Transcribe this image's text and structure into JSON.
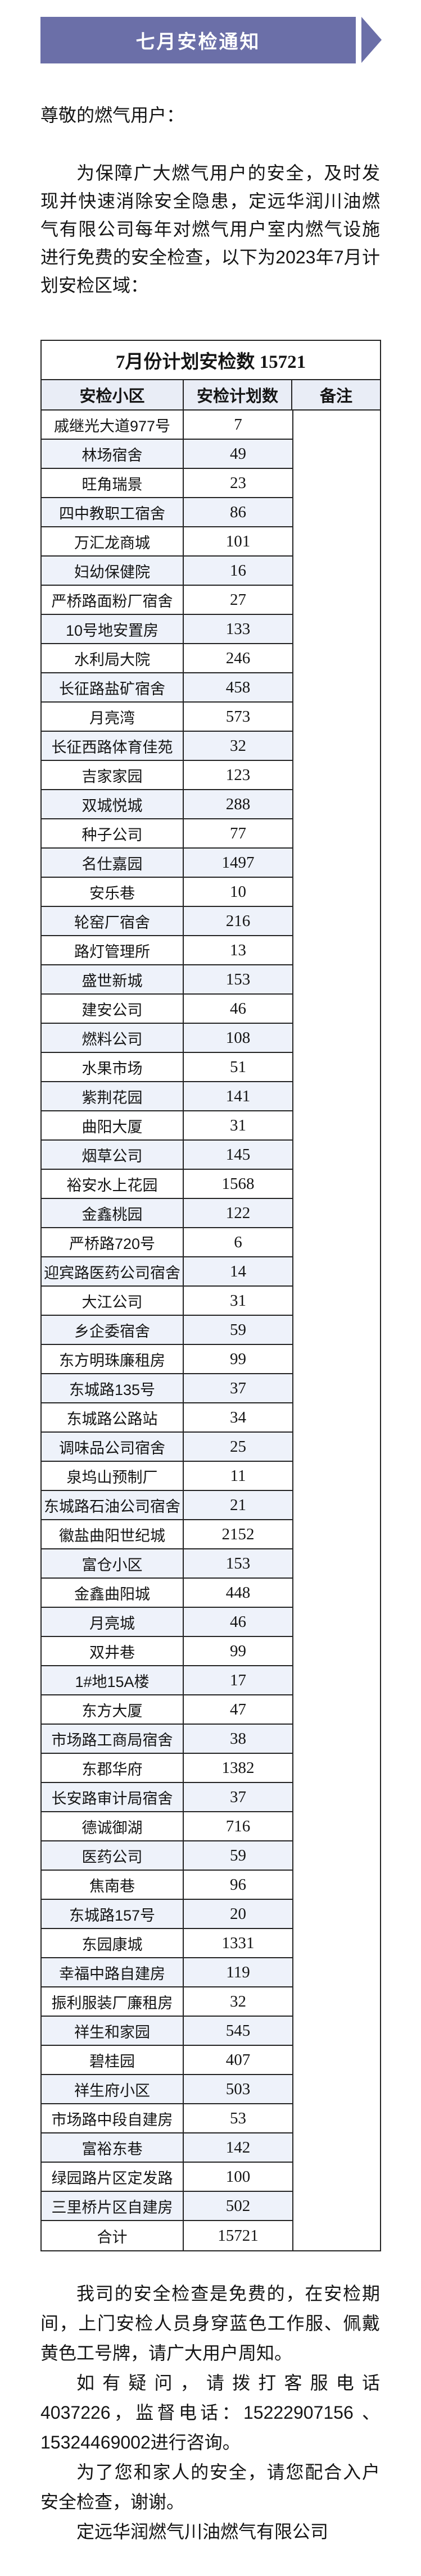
{
  "colors": {
    "banner_purple": "#6b6fa8",
    "header_row_bg": "#e9edf6",
    "alt_row_bg": "#eef2fa",
    "border": "#242424",
    "text": "#151515"
  },
  "banner": {
    "title": "七月安检通知"
  },
  "greeting": "尊敬的燃气用户：",
  "intro": "为保障广大燃气用户的安全，及时发现并快速消除安全隐患，定远华润川油燃气有限公司每年对燃气用户室内燃气设施进行免费的安全检查，以下为2023年7月计划安检区域：",
  "table": {
    "title": "7月份计划安检数 15721",
    "columns": [
      "安检小区",
      "安检计划数",
      "备注"
    ],
    "rows": [
      {
        "name": "戚继光大道977号",
        "count": "7"
      },
      {
        "name": "林场宿舍",
        "count": "49"
      },
      {
        "name": "旺角瑞景",
        "count": "23"
      },
      {
        "name": "四中教职工宿舍",
        "count": "86"
      },
      {
        "name": "万汇龙商城",
        "count": "101"
      },
      {
        "name": "妇幼保健院",
        "count": "16"
      },
      {
        "name": "严桥路面粉厂宿舍",
        "count": "27"
      },
      {
        "name": "10号地安置房",
        "count": "133"
      },
      {
        "name": "水利局大院",
        "count": "246"
      },
      {
        "name": "长征路盐矿宿舍",
        "count": "458"
      },
      {
        "name": "月亮湾",
        "count": "573"
      },
      {
        "name": "长征西路体育佳苑",
        "count": "32"
      },
      {
        "name": "吉家家园",
        "count": "123"
      },
      {
        "name": "双城悦城",
        "count": "288"
      },
      {
        "name": "种子公司",
        "count": "77"
      },
      {
        "name": "名仕嘉园",
        "count": "1497"
      },
      {
        "name": "安乐巷",
        "count": "10"
      },
      {
        "name": "轮窑厂宿舍",
        "count": "216"
      },
      {
        "name": "路灯管理所",
        "count": "13"
      },
      {
        "name": "盛世新城",
        "count": "153"
      },
      {
        "name": "建安公司",
        "count": "46"
      },
      {
        "name": "燃料公司",
        "count": "108"
      },
      {
        "name": "水果市场",
        "count": "51"
      },
      {
        "name": "紫荆花园",
        "count": "141"
      },
      {
        "name": "曲阳大厦",
        "count": "31"
      },
      {
        "name": "烟草公司",
        "count": "145"
      },
      {
        "name": "裕安水上花园",
        "count": "1568"
      },
      {
        "name": "金鑫桃园",
        "count": "122"
      },
      {
        "name": "严桥路720号",
        "count": "6"
      },
      {
        "name": "迎宾路医药公司宿舍",
        "count": "14"
      },
      {
        "name": "大江公司",
        "count": "31"
      },
      {
        "name": "乡企委宿舍",
        "count": "59"
      },
      {
        "name": "东方明珠廉租房",
        "count": "99"
      },
      {
        "name": "东城路135号",
        "count": "37"
      },
      {
        "name": "东城路公路站",
        "count": "34"
      },
      {
        "name": "调味品公司宿舍",
        "count": "25"
      },
      {
        "name": "泉坞山预制厂",
        "count": "11"
      },
      {
        "name": "东城路石油公司宿舍",
        "count": "21"
      },
      {
        "name": "徽盐曲阳世纪城",
        "count": "2152"
      },
      {
        "name": "富仓小区",
        "count": "153"
      },
      {
        "name": "金鑫曲阳城",
        "count": "448"
      },
      {
        "name": "月亮城",
        "count": "46"
      },
      {
        "name": "双井巷",
        "count": "99"
      },
      {
        "name": "1#地15A楼",
        "count": "17"
      },
      {
        "name": "东方大厦",
        "count": "47"
      },
      {
        "name": "市场路工商局宿舍",
        "count": "38"
      },
      {
        "name": "东郡华府",
        "count": "1382"
      },
      {
        "name": "长安路审计局宿舍",
        "count": "37"
      },
      {
        "name": "德诚御湖",
        "count": "716"
      },
      {
        "name": "医药公司",
        "count": "59"
      },
      {
        "name": "焦南巷",
        "count": "96"
      },
      {
        "name": "东城路157号",
        "count": "20"
      },
      {
        "name": "东园康城",
        "count": "1331"
      },
      {
        "name": "幸福中路自建房",
        "count": "119"
      },
      {
        "name": "振利服装厂廉租房",
        "count": "32"
      },
      {
        "name": "祥生和家园",
        "count": "545"
      },
      {
        "name": "碧桂园",
        "count": "407"
      },
      {
        "name": "祥生府小区",
        "count": "503"
      },
      {
        "name": "市场路中段自建房",
        "count": "53"
      },
      {
        "name": "富裕东巷",
        "count": "142"
      },
      {
        "name": "绿园路片区定发路",
        "count": "100"
      },
      {
        "name": "三里桥片区自建房",
        "count": "502"
      }
    ],
    "total_label": "合计",
    "total_value": "15721"
  },
  "footer": {
    "para1": "我司的安全检查是免费的，在安检期间，上门安检人员身穿蓝色工作服、佩戴黄色工号牌，请广大用户周知。",
    "para2": "如有疑问，请拨打客服电话4037226，监督电话：15222907156 、15324469002进行咨询。",
    "para3": "为了您和家人的安全，请您配合入户安全检查，谢谢。",
    "company": "定远华润燃气川油燃气有限公司"
  }
}
